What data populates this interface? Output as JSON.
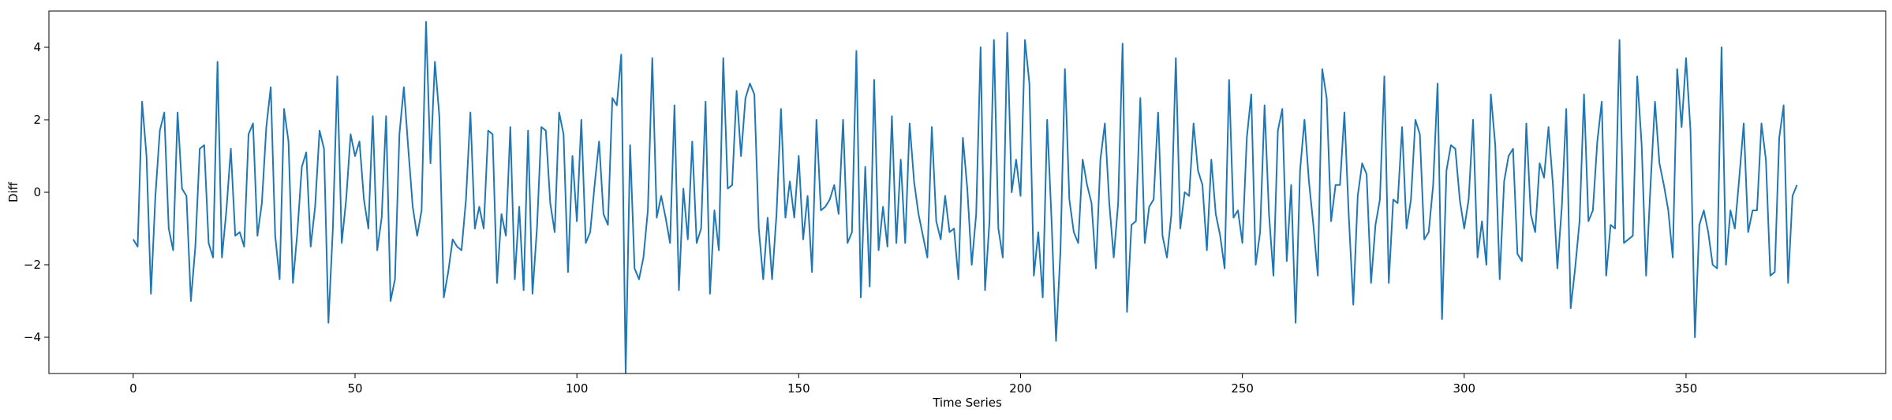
{
  "chart_data": {
    "type": "line",
    "xlabel": "Time Series",
    "ylabel": "Diff",
    "xlim": [
      -19,
      395
    ],
    "ylim": [
      -5,
      5
    ],
    "x_ticks": [
      0,
      50,
      100,
      150,
      200,
      250,
      300,
      350
    ],
    "y_ticks": [
      -4,
      -2,
      0,
      2,
      4
    ],
    "x_tick_labels": [
      "0",
      "50",
      "100",
      "150",
      "200",
      "250",
      "300",
      "350"
    ],
    "y_tick_labels": [
      "−4",
      "−2",
      "0",
      "2",
      "4"
    ],
    "grid": false,
    "series": [
      {
        "color": "#1f77b4",
        "x_start": 0,
        "x_step": 1,
        "values": [
          -1.3,
          -1.5,
          2.5,
          1.0,
          -2.8,
          -0.1,
          1.7,
          2.2,
          -1.0,
          -1.6,
          2.2,
          0.1,
          -0.1,
          -3.0,
          -1.5,
          1.2,
          1.3,
          -1.4,
          -1.8,
          3.6,
          -1.8,
          -0.5,
          1.2,
          -1.2,
          -1.1,
          -1.5,
          1.6,
          1.9,
          -1.2,
          -0.3,
          1.8,
          2.9,
          -1.2,
          -2.4,
          2.3,
          1.4,
          -2.5,
          -1.1,
          0.7,
          1.1,
          -1.5,
          -0.4,
          1.7,
          1.2,
          -3.6,
          -1.0,
          3.2,
          -1.4,
          -0.2,
          1.6,
          1.0,
          1.4,
          -0.2,
          -1.0,
          2.1,
          -1.6,
          -0.7,
          2.1,
          -3.0,
          -2.4,
          1.6,
          2.9,
          1.2,
          -0.4,
          -1.2,
          -0.5,
          4.7,
          0.8,
          3.6,
          2.1,
          -2.9,
          -2.2,
          -1.3,
          -1.5,
          -1.6,
          -0.2,
          2.2,
          -1.0,
          -0.4,
          -1.0,
          1.7,
          1.6,
          -2.5,
          -0.6,
          -1.2,
          1.8,
          -2.4,
          -0.4,
          -2.7,
          1.7,
          -2.8,
          -1.0,
          1.8,
          1.7,
          -0.3,
          -1.1,
          2.2,
          1.6,
          -2.2,
          1.0,
          -0.8,
          2.0,
          -1.4,
          -1.1,
          0.2,
          1.4,
          -0.6,
          -0.9,
          2.6,
          2.4,
          3.8,
          -5.0,
          1.3,
          -2.1,
          -2.4,
          -1.8,
          -0.5,
          3.7,
          -0.7,
          -0.1,
          -0.7,
          -1.4,
          2.4,
          -2.7,
          0.1,
          -1.3,
          1.4,
          -1.4,
          -1.0,
          2.5,
          -2.8,
          -0.5,
          -1.6,
          3.7,
          0.1,
          0.2,
          2.8,
          1.0,
          2.6,
          3.0,
          2.7,
          -1.0,
          -2.4,
          -0.7,
          -2.4,
          -0.6,
          2.3,
          -0.7,
          0.3,
          -0.7,
          1.0,
          -1.3,
          -0.1,
          -2.2,
          2.0,
          -0.5,
          -0.4,
          -0.2,
          0.2,
          -0.6,
          2.0,
          -1.4,
          -1.1,
          3.9,
          -2.9,
          0.7,
          -2.6,
          3.1,
          -1.6,
          -0.4,
          -1.5,
          2.1,
          -1.4,
          0.9,
          -1.4,
          1.9,
          0.3,
          -0.6,
          -1.2,
          -1.8,
          1.8,
          -0.8,
          -1.3,
          -0.1,
          -1.1,
          -1.0,
          -2.4,
          1.5,
          0.1,
          -2.0,
          -0.6,
          4.0,
          -2.7,
          -0.8,
          4.2,
          -1.0,
          -1.8,
          4.4,
          0.0,
          0.9,
          -0.1,
          4.2,
          3.0,
          -2.3,
          -1.1,
          -2.9,
          2.0,
          -0.8,
          -4.1,
          -1.6,
          3.4,
          -0.2,
          -1.1,
          -1.4,
          0.9,
          0.2,
          -0.3,
          -2.1,
          0.9,
          1.9,
          -0.3,
          -1.8,
          -0.3,
          4.1,
          -3.3,
          -0.9,
          -0.8,
          2.6,
          -1.4,
          -0.4,
          -0.2,
          2.2,
          -1.2,
          -1.8,
          -0.6,
          3.7,
          -1.0,
          0.0,
          -0.1,
          1.9,
          0.6,
          0.2,
          -1.6,
          0.9,
          -0.6,
          -1.2,
          -2.1,
          3.1,
          -0.7,
          -0.5,
          -1.4,
          1.5,
          2.7,
          -2.0,
          -1.1,
          2.4,
          -0.6,
          -2.3,
          1.7,
          2.3,
          -1.9,
          0.2,
          -3.6,
          0.6,
          2.0,
          0.3,
          -0.9,
          -2.3,
          3.4,
          2.6,
          -0.8,
          0.2,
          0.2,
          2.2,
          -0.7,
          -3.1,
          -0.1,
          0.8,
          0.5,
          -2.5,
          -0.9,
          -0.2,
          3.2,
          -2.5,
          -0.2,
          -0.3,
          1.8,
          -1.0,
          -0.2,
          2.0,
          1.6,
          -1.3,
          -1.1,
          0.2,
          3.0,
          -3.5,
          0.6,
          1.3,
          1.2,
          -0.2,
          -1.0,
          -0.2,
          2.0,
          -1.8,
          -0.8,
          -2.0,
          2.7,
          1.3,
          -2.4,
          0.3,
          1.0,
          1.2,
          -1.7,
          -1.9,
          1.9,
          -0.6,
          -1.1,
          0.8,
          0.4,
          1.8,
          0.2,
          -2.1,
          -0.4,
          2.3,
          -3.2,
          -2.1,
          -0.8,
          2.7,
          -0.8,
          -0.5,
          1.4,
          2.5,
          -2.3,
          -0.9,
          -1.0,
          4.2,
          -1.4,
          -1.3,
          -1.2,
          3.2,
          1.3,
          -2.3,
          0.2,
          2.5,
          0.8,
          0.2,
          -0.5,
          -1.8,
          3.4,
          1.8,
          3.7,
          1.7,
          -4.0,
          -0.9,
          -0.5,
          -1.1,
          -2.0,
          -2.1,
          4.0,
          -2.0,
          -0.5,
          -1.0,
          0.4,
          1.9,
          -1.1,
          -0.5,
          -0.5,
          1.9,
          0.9,
          -2.3,
          -2.2,
          1.5,
          2.4,
          -2.5,
          -0.1,
          0.2
        ]
      }
    ]
  }
}
